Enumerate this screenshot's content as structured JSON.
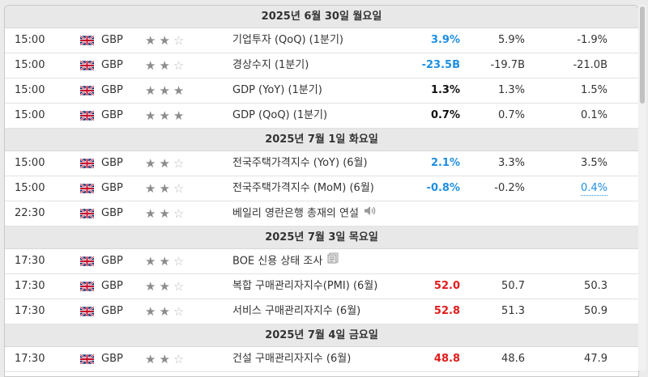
{
  "colors": {
    "positive": "#1e8fe1",
    "negative": "#e21b1b",
    "neutral": "#111111"
  },
  "days": [
    {
      "date": "2025년 6월 30일 월요일",
      "events": [
        {
          "time": "15:00",
          "flag": "uk-flag-icon",
          "currency": "GBP",
          "stars": 2,
          "event": "기업투자 (QoQ) (1분기)",
          "actual": "3.9%",
          "actual_color": "blue",
          "forecast": "5.9%",
          "previous": "-1.9%",
          "icon": ""
        },
        {
          "time": "15:00",
          "flag": "uk-flag-icon",
          "currency": "GBP",
          "stars": 2,
          "event": "경상수지 (1분기)",
          "actual": "-23.5B",
          "actual_color": "blue",
          "forecast": "-19.7B",
          "previous": "-21.0B",
          "icon": ""
        },
        {
          "time": "15:00",
          "flag": "uk-flag-icon",
          "currency": "GBP",
          "stars": 3,
          "event": "GDP (YoY) (1분기)",
          "actual": "1.3%",
          "actual_color": "black",
          "forecast": "1.3%",
          "previous": "1.5%",
          "icon": ""
        },
        {
          "time": "15:00",
          "flag": "uk-flag-icon",
          "currency": "GBP",
          "stars": 3,
          "event": "GDP (QoQ) (1분기)",
          "actual": "0.7%",
          "actual_color": "black",
          "forecast": "0.7%",
          "previous": "0.1%",
          "icon": ""
        }
      ]
    },
    {
      "date": "2025년 7월 1일 화요일",
      "events": [
        {
          "time": "15:00",
          "flag": "uk-flag-icon",
          "currency": "GBP",
          "stars": 2,
          "event": "전국주택가격지수 (YoY) (6월)",
          "actual": "2.1%",
          "actual_color": "blue",
          "forecast": "3.3%",
          "previous": "3.5%",
          "icon": ""
        },
        {
          "time": "15:00",
          "flag": "uk-flag-icon",
          "currency": "GBP",
          "stars": 2,
          "event": "전국주택가격지수 (MoM) (6월)",
          "actual": "-0.8%",
          "actual_color": "blue",
          "forecast": "-0.2%",
          "previous": "0.4%",
          "previous_revised": true,
          "icon": ""
        },
        {
          "time": "22:30",
          "flag": "uk-flag-icon",
          "currency": "GBP",
          "stars": 2,
          "event": "베일리 영란은행 총재의 연설",
          "actual": "",
          "actual_color": "black",
          "forecast": "",
          "previous": "",
          "icon": "speaker-icon"
        }
      ]
    },
    {
      "date": "2025년 7월 3일 목요일",
      "events": [
        {
          "time": "17:30",
          "flag": "uk-flag-icon",
          "currency": "GBP",
          "stars": 2,
          "event": "BOE 신용 상태 조사",
          "actual": "",
          "actual_color": "black",
          "forecast": "",
          "previous": "",
          "icon": "document-icon"
        },
        {
          "time": "17:30",
          "flag": "uk-flag-icon",
          "currency": "GBP",
          "stars": 2,
          "event": "복합 구매관리자지수(PMI) (6월)",
          "actual": "52.0",
          "actual_color": "red",
          "forecast": "50.7",
          "previous": "50.3",
          "icon": ""
        },
        {
          "time": "17:30",
          "flag": "uk-flag-icon",
          "currency": "GBP",
          "stars": 2,
          "event": "서비스 구매관리자지수 (6월)",
          "actual": "52.8",
          "actual_color": "red",
          "forecast": "51.3",
          "previous": "50.9",
          "icon": ""
        }
      ]
    },
    {
      "date": "2025년 7월 4일 금요일",
      "events": [
        {
          "time": "17:30",
          "flag": "uk-flag-icon",
          "currency": "GBP",
          "stars": 2,
          "event": "건설 구매관리자지수 (6월)",
          "actual": "48.8",
          "actual_color": "red",
          "forecast": "48.6",
          "previous": "47.9",
          "icon": ""
        }
      ]
    }
  ]
}
